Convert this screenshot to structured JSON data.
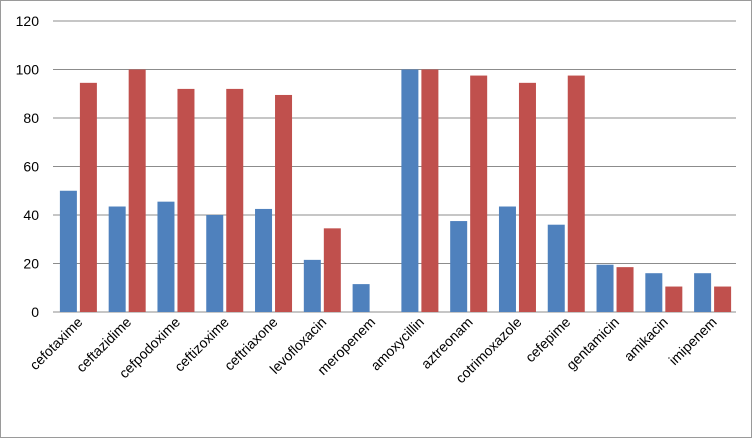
{
  "chart_data": {
    "type": "bar",
    "categories": [
      "cefotaxime",
      "ceftazidime",
      "cefpodoxime",
      "ceftizoxime",
      "ceftriaxone",
      "levofloxacin",
      "meropenem",
      "amoxycillin",
      "aztreonam",
      "cotrimoxazole",
      "cefepime",
      "gentamicin",
      "amikacin",
      "imipenem"
    ],
    "series": [
      {
        "color": "#4f81bd",
        "values": [
          50,
          43.5,
          45.5,
          40,
          42.5,
          21.5,
          11.5,
          100,
          37.5,
          43.5,
          36,
          19.5,
          16,
          16
        ]
      },
      {
        "color": "#c0504d",
        "values": [
          94.5,
          100,
          92,
          92,
          89.5,
          34.5,
          0,
          100,
          97.5,
          94.5,
          97.5,
          18.5,
          10.5,
          10.5
        ]
      }
    ],
    "yticks": [
      "0",
      "20",
      "40",
      "60",
      "80",
      "100",
      "120"
    ],
    "ylim": [
      0,
      120
    ],
    "grid": true,
    "legend": "none",
    "title": "",
    "xlabel": "",
    "ylabel": ""
  }
}
